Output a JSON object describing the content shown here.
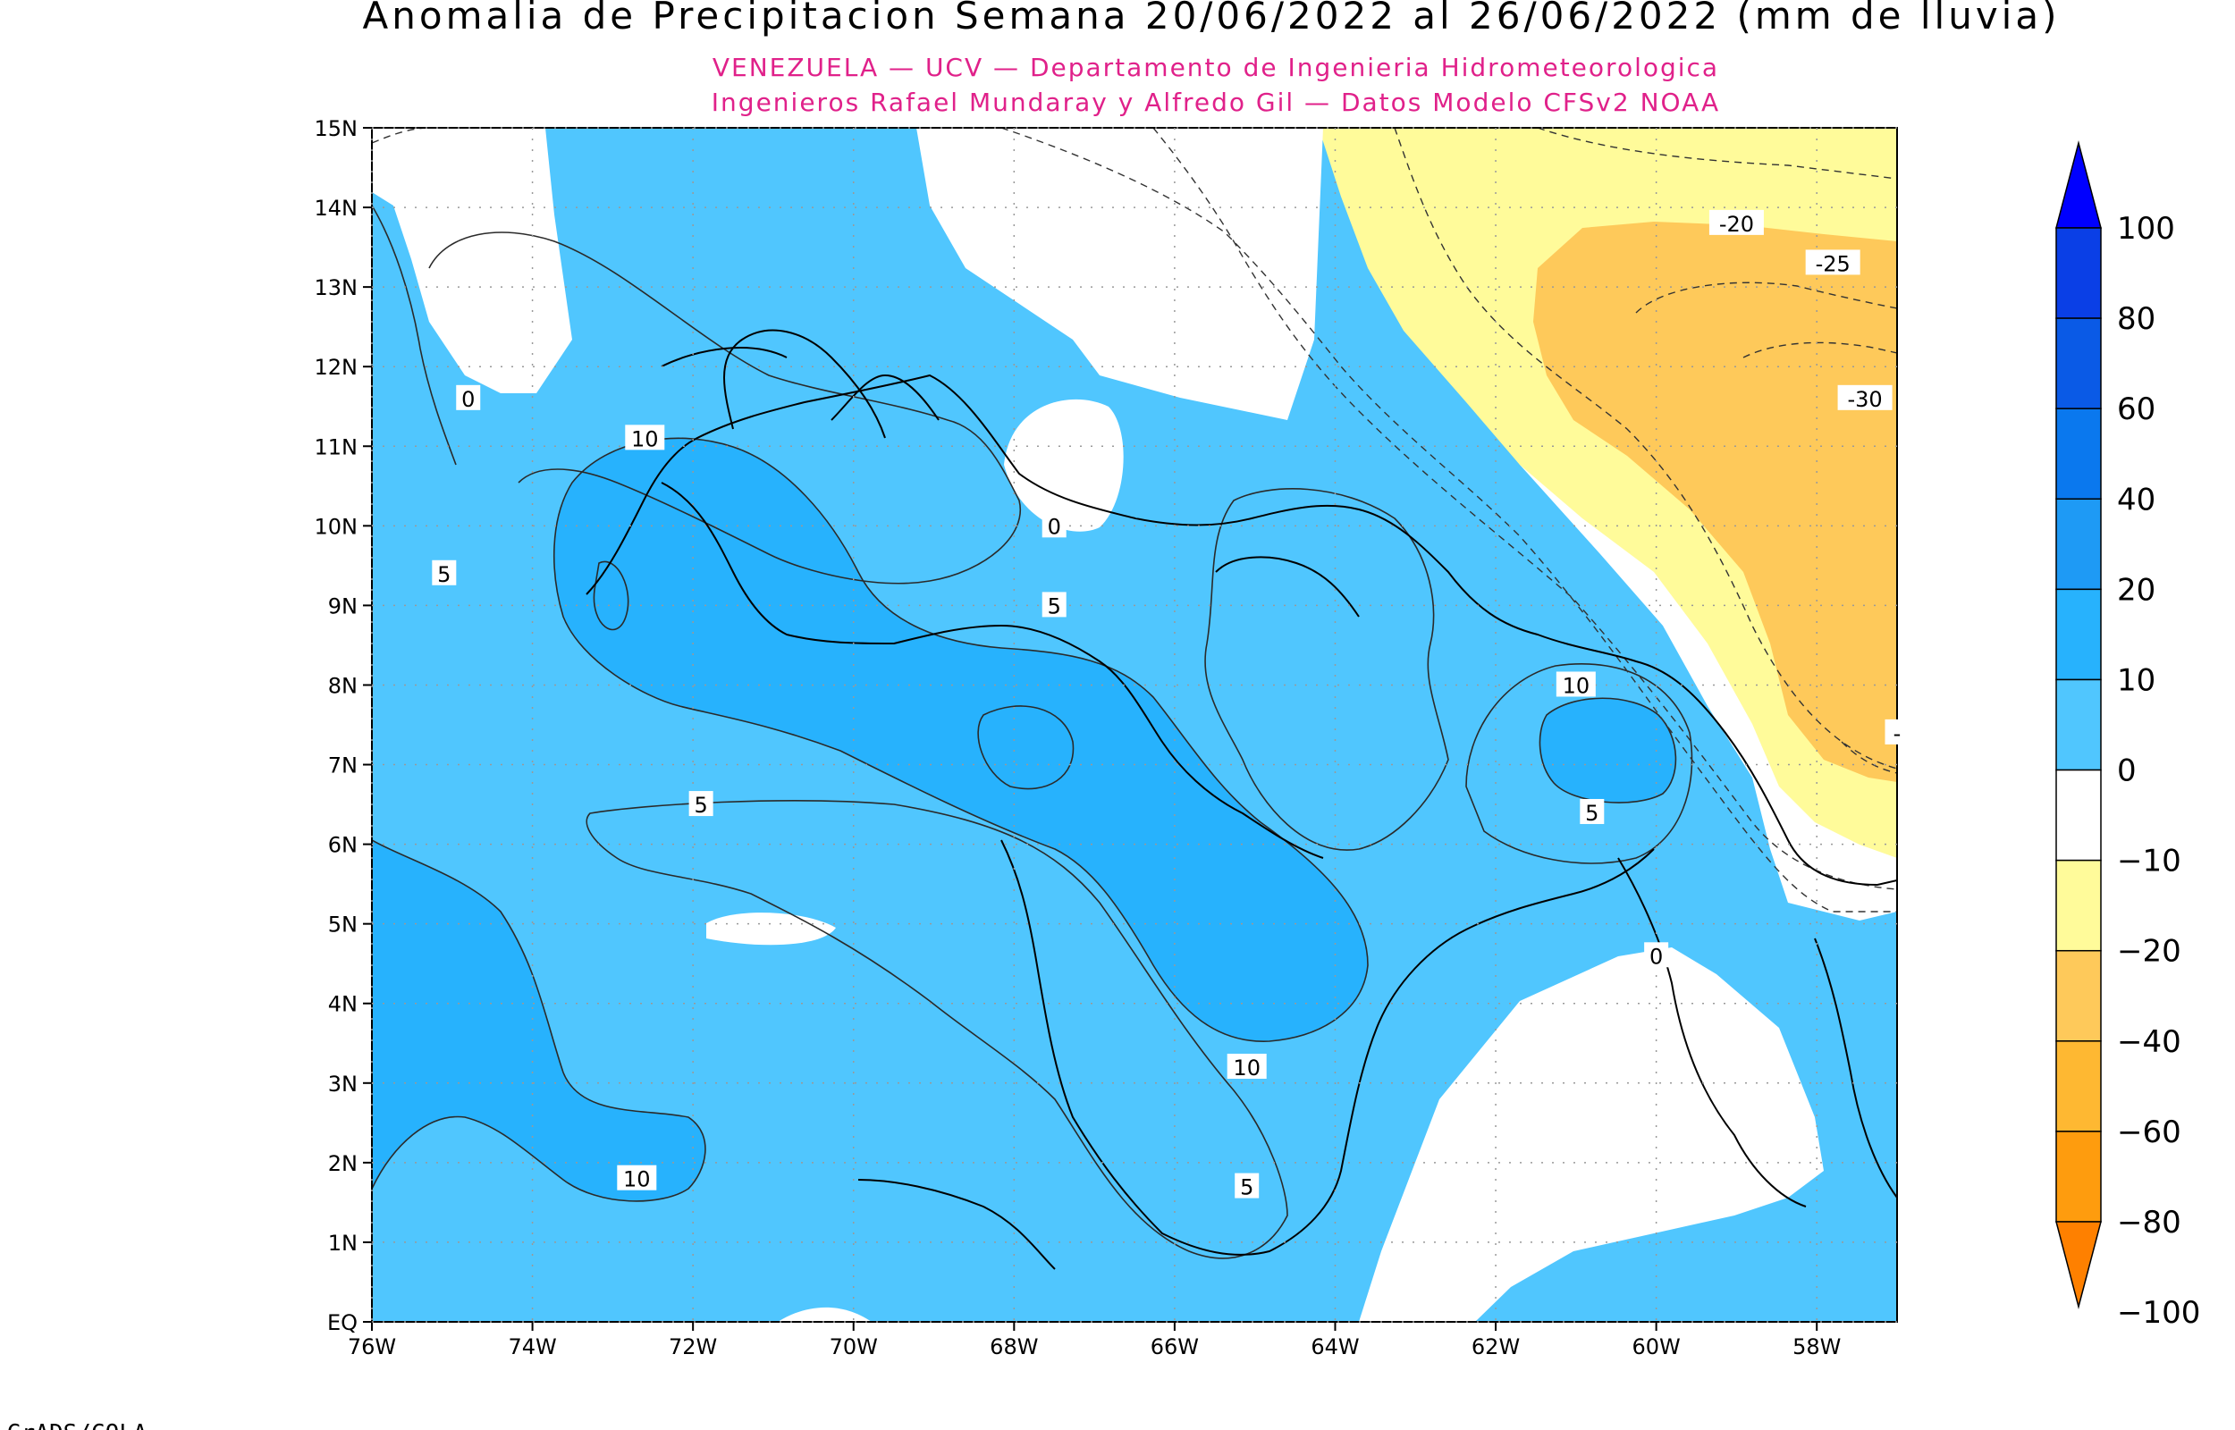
{
  "title": "Anomalia de Precipitacion Semana 20/06/2022 al 26/06/2022 (mm de lluvia)",
  "credits": [
    "VENEZUELA — UCV — Departamento de Ingenieria Hidrometeorologica",
    "Ingenieros Rafael Mundaray y Alfredo Gil — Datos Modelo CFSv2 NOAA"
  ],
  "footer": "GrADS/COLA",
  "map": {
    "lon_range": [
      -76,
      -57
    ],
    "lat_range": [
      0,
      15
    ],
    "x_ticks": [
      "76W",
      "74W",
      "72W",
      "70W",
      "68W",
      "66W",
      "64W",
      "62W",
      "60W",
      "58W"
    ],
    "y_ticks": [
      "EQ",
      "1N",
      "2N",
      "3N",
      "4N",
      "5N",
      "6N",
      "7N",
      "8N",
      "9N",
      "10N",
      "11N",
      "12N",
      "13N",
      "14N",
      "15N"
    ],
    "contour_labels": [
      "0",
      "5",
      "10",
      "5",
      "5",
      "10",
      "10",
      "5",
      "0",
      "10",
      "5",
      "-20",
      "-25",
      "-30",
      "-",
      "0"
    ]
  },
  "legend": {
    "labels": [
      "100",
      "80",
      "60",
      "40",
      "20",
      "10",
      "0",
      "−10",
      "−20",
      "−40",
      "−60",
      "−80",
      "−100"
    ],
    "colors": [
      "#0000ff",
      "#0a3fe6",
      "#0a5ae6",
      "#0a78ee",
      "#1e9af5",
      "#27b2fd",
      "#50c6fe",
      "#ffffff",
      "#fffb9a",
      "#fec95a",
      "#feb832",
      "#fe9c0e",
      "#fe8000"
    ]
  }
}
